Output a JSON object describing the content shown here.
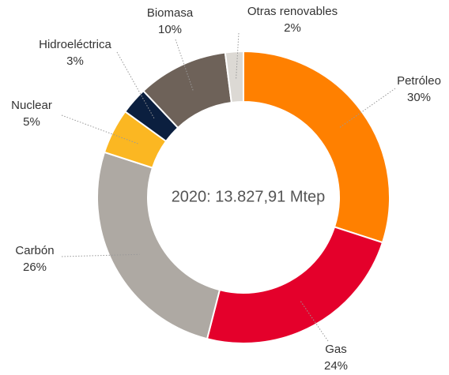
{
  "chart_data": {
    "type": "donut",
    "center_label": "2020: 13.827,91 Mtep",
    "categories": [
      "Petróleo",
      "Gas",
      "Carbón",
      "Nuclear",
      "Hidroeléctrica",
      "Biomasa",
      "Otras renovables"
    ],
    "values": [
      30,
      24,
      26,
      5,
      3,
      10,
      2
    ],
    "value_labels": [
      "30%",
      "24%",
      "26%",
      "5%",
      "3%",
      "10%",
      "2%"
    ],
    "colors": [
      "#ff8000",
      "#e4002b",
      "#aea9a3",
      "#fbb722",
      "#0b1f3f",
      "#6e6259",
      "#dcd9d4"
    ]
  }
}
